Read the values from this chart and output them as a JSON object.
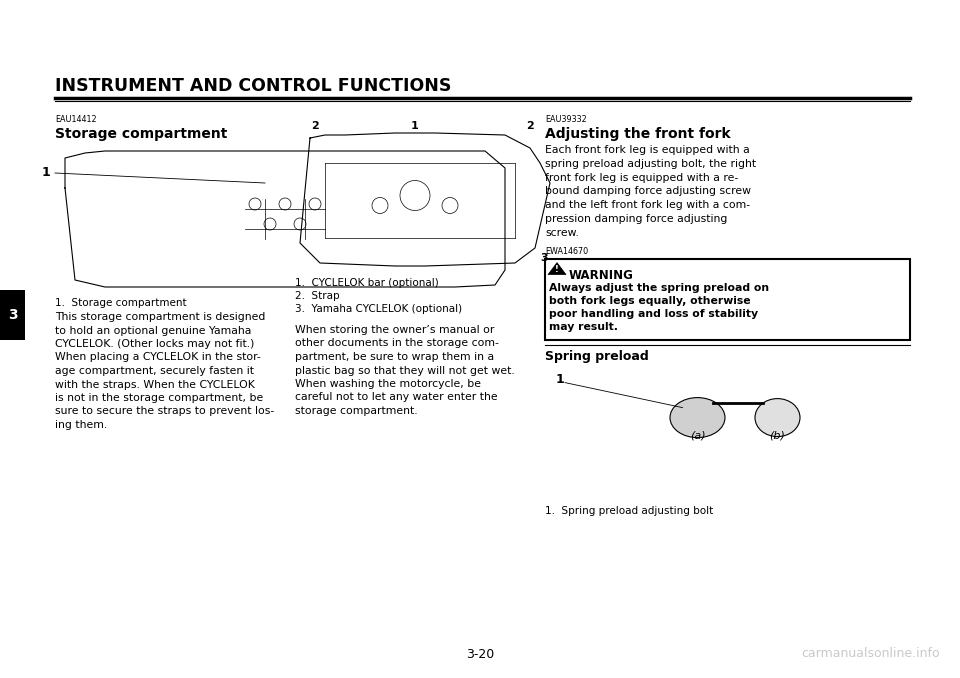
{
  "bg_color": "#ffffff",
  "page_width": 9.6,
  "page_height": 6.78,
  "dpi": 100,
  "header_title": "INSTRUMENT AND CONTROL FUNCTIONS",
  "page_number": "3-20",
  "watermark": "carmanualsonline.info",
  "tab_label": "3",
  "left_section_title": "Storage compartment",
  "left_section_code": "EAU14412",
  "left_body_text": [
    "This storage compartment is designed",
    "to hold an optional genuine Yamaha",
    "CYCLELOK. (Other locks may not fit.)",
    "When placing a CYCLELOK in the stor-",
    "age compartment, securely fasten it",
    "with the straps. When the CYCLELOK",
    "is not in the storage compartment, be",
    "sure to secure the straps to prevent los-",
    "ing them."
  ],
  "left_fig_caption": "1.  Storage compartment",
  "center_captions": [
    "1.  CYCLELOK bar (optional)",
    "2.  Strap",
    "3.  Yamaha CYCLELOK (optional)"
  ],
  "center_body_text": [
    "When storing the owner’s manual or",
    "other documents in the storage com-",
    "partment, be sure to wrap them in a",
    "plastic bag so that they will not get wet.",
    "When washing the motorcycle, be",
    "careful not to let any water enter the",
    "storage compartment."
  ],
  "right_section_title": "Adjusting the front fork",
  "right_section_code": "EAU39332",
  "right_body_text": [
    "Each front fork leg is equipped with a",
    "spring preload adjusting bolt, the right",
    "front fork leg is equipped with a re-",
    "bound damping force adjusting screw",
    "and the left front fork leg with a com-",
    "pression damping force adjusting",
    "screw."
  ],
  "warning_code": "EWA14670",
  "warning_title": "WARNING",
  "warning_text": [
    "Always adjust the spring preload on",
    "both fork legs equally, otherwise",
    "poor handling and loss of stability",
    "may result."
  ],
  "right_sub_title": "Spring preload",
  "right_fig_caption": "1.  Spring preload adjusting bolt",
  "font_size_body": 7.8,
  "font_size_title": 10.0,
  "font_size_header": 12.5,
  "font_size_small": 5.8,
  "font_size_caption": 7.5,
  "font_size_warning": 8.5
}
